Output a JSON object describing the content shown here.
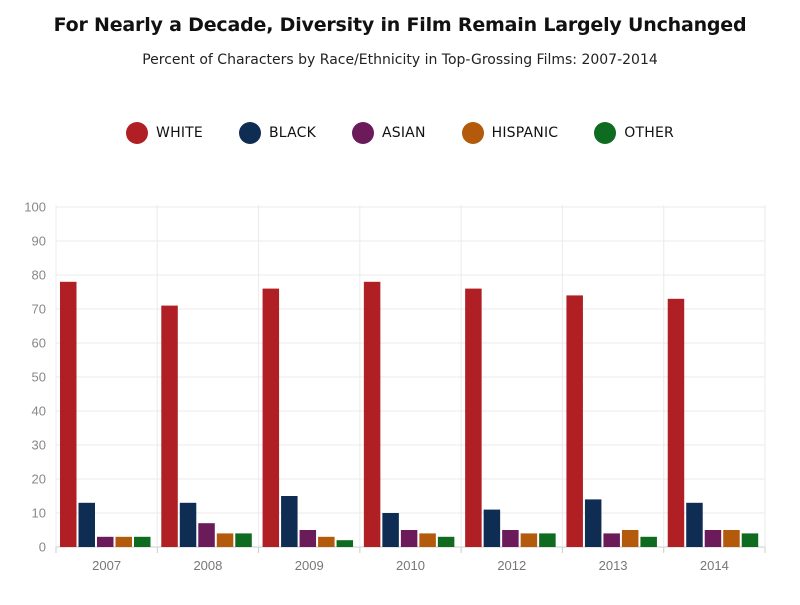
{
  "chart_data": {
    "type": "bar",
    "title": "For Nearly a Decade, Diversity in Film Remain Largely Unchanged",
    "subtitle": "Percent of Characters by Race/Ethnicity in Top-Grossing Films: 2007-2014",
    "xlabel": "",
    "ylabel": "",
    "ylim": [
      0,
      100
    ],
    "yticks": [
      0,
      10,
      20,
      30,
      40,
      50,
      60,
      70,
      80,
      90,
      100
    ],
    "grid": true,
    "legend_position": "top-center",
    "categories": [
      "2007",
      "2008",
      "2009",
      "2010",
      "2012",
      "2013",
      "2014"
    ],
    "series": [
      {
        "name": "WHITE",
        "color": "#b01f24",
        "values": [
          78,
          71,
          76,
          78,
          76,
          74,
          73
        ]
      },
      {
        "name": "BLACK",
        "color": "#0f2d52",
        "values": [
          13,
          13,
          15,
          10,
          11,
          14,
          13
        ]
      },
      {
        "name": "ASIAN",
        "color": "#6b1a5a",
        "values": [
          3,
          7,
          5,
          5,
          5,
          4,
          5
        ]
      },
      {
        "name": "HISPANIC",
        "color": "#b35a0c",
        "values": [
          3,
          4,
          3,
          4,
          4,
          5,
          5
        ]
      },
      {
        "name": "OTHER",
        "color": "#0f6b1f",
        "values": [
          3,
          4,
          2,
          3,
          4,
          3,
          4
        ]
      }
    ]
  }
}
